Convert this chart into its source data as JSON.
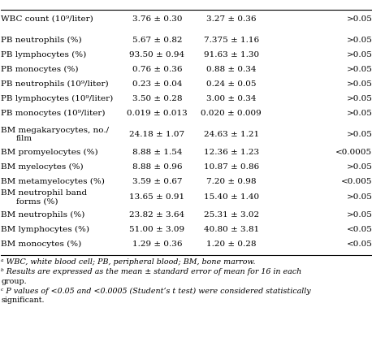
{
  "rows": [
    [
      "WBC count (10⁹/liter)",
      "3.76 ± 0.30",
      "3.27 ± 0.36",
      ">0.05",
      false,
      false
    ],
    [
      "",
      "",
      "",
      "",
      false,
      false
    ],
    [
      "PB neutrophils (%)",
      "5.67 ± 0.82",
      "7.375 ± 1.16",
      ">0.05",
      false,
      false
    ],
    [
      "PB lymphocytes (%)",
      "93.50 ± 0.94",
      "91.63 ± 1.30",
      ">0.05",
      false,
      false
    ],
    [
      "PB monocytes (%)",
      "0.76 ± 0.36",
      "0.88 ± 0.34",
      ">0.05",
      false,
      false
    ],
    [
      "PB neutrophils (10⁹/liter)",
      "0.23 ± 0.04",
      "0.24 ± 0.05",
      ">0.05",
      false,
      false
    ],
    [
      "PB lymphocytes (10⁹/liter)",
      "3.50 ± 0.28",
      "3.00 ± 0.34",
      ">0.05",
      false,
      false
    ],
    [
      "PB monocytes (10⁹/liter)",
      "0.019 ± 0.013",
      "0.020 ± 0.009",
      ">0.05",
      false,
      false
    ],
    [
      "",
      "",
      "",
      "",
      false,
      false
    ],
    [
      "BM megakaryocytes, no./\n  film",
      "24.18 ± 1.07",
      "24.63 ± 1.21",
      ">0.05",
      false,
      false
    ],
    [
      "BM promyelocytes (%)",
      "8.88 ± 1.54",
      "12.36 ± 1.23",
      "<0.0005",
      false,
      false
    ],
    [
      "BM myelocytes (%)",
      "8.88 ± 0.96",
      "10.87 ± 0.86",
      ">0.05",
      false,
      false
    ],
    [
      "BM metamyelocytes (%)",
      "3.59 ± 0.67",
      "7.20 ± 0.98",
      "<0.005",
      false,
      false
    ],
    [
      "BM neutrophil band\n  forms (%)",
      "13.65 ± 0.91",
      "15.40 ± 1.40",
      ">0.05",
      false,
      false
    ],
    [
      "BM neutrophils (%)",
      "23.82 ± 3.64",
      "25.31 ± 3.02",
      ">0.05",
      false,
      false
    ],
    [
      "BM lymphocytes (%)",
      "51.00 ± 3.09",
      "40.80 ± 3.81",
      "<0.05",
      false,
      false
    ],
    [
      "BM monocytes (%)",
      "1.29 ± 0.36",
      "1.20 ± 0.28",
      "<0.05",
      false,
      false
    ]
  ],
  "footnotes": [
    "ᵃ WBC, white blood cell; PB, peripheral blood; BM, bone marrow.",
    "ᵇ Results are expressed as the mean ± standard error of mean for 16 in each",
    "group.",
    "ᶜ P values of <0.05 and <0.0005 (Student’s t test) were considered statistically",
    "significant."
  ],
  "bg_color": "#ffffff",
  "text_color": "#000000",
  "font_size": 7.5,
  "footnote_font_size": 6.8
}
